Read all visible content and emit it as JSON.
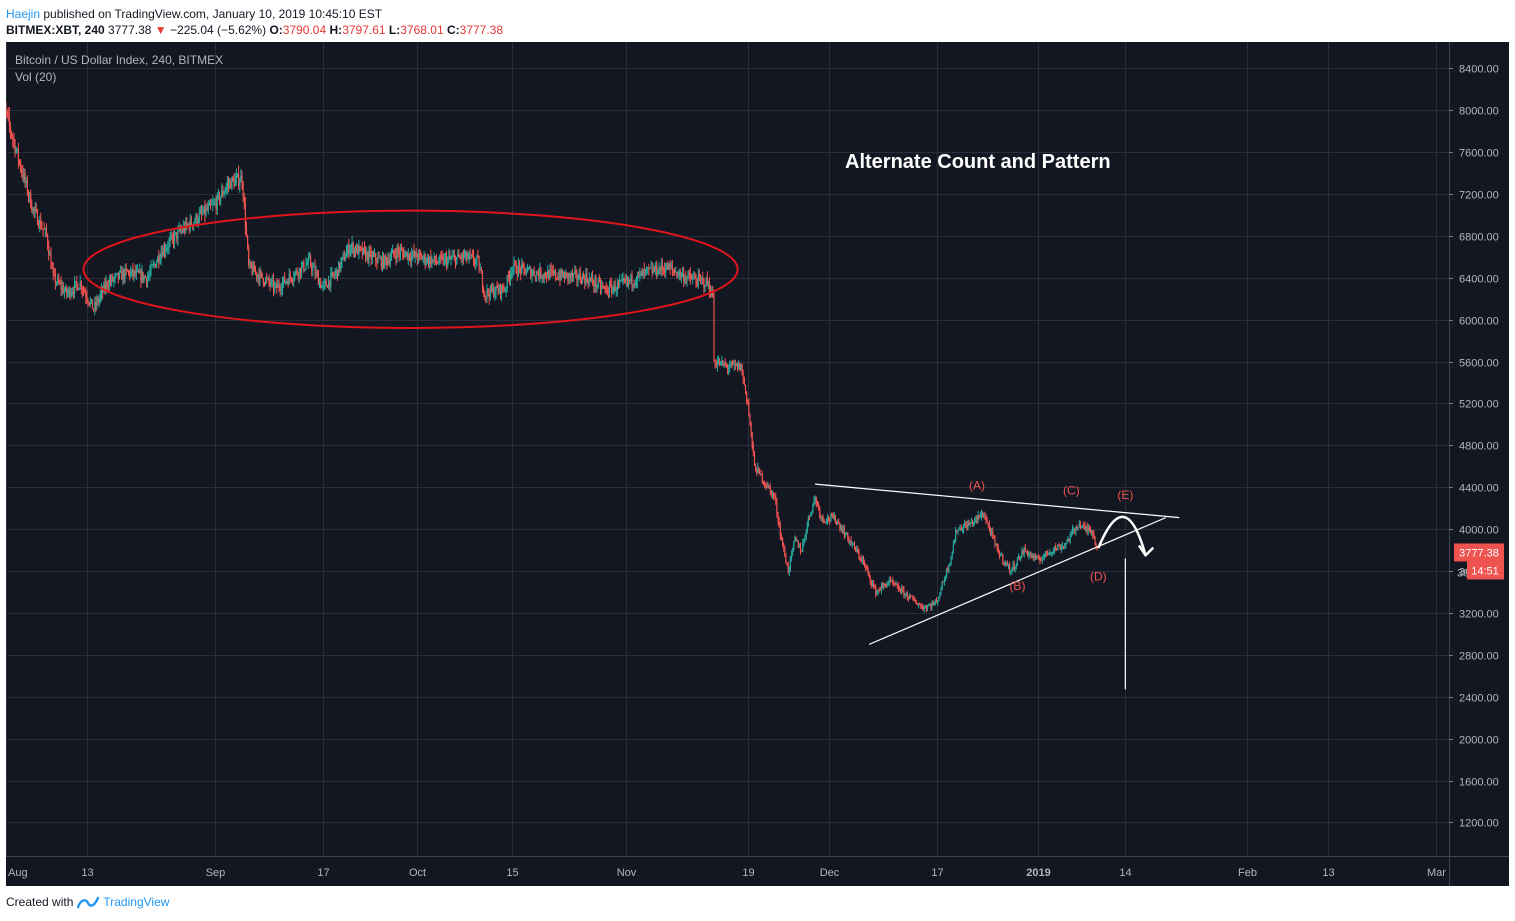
{
  "header": {
    "author": "Haejin",
    "published": "published on TradingView.com, January 10, 2019 10:45:10 EST",
    "symbol": "BITMEX:XBT, 240",
    "last": "3777.38",
    "change": "−225.04 (−5.62%)",
    "open_label": "O:",
    "open": "3790.04",
    "high_label": "H:",
    "high": "3797.61",
    "low_label": "L:",
    "low": "3768.01",
    "close_label": "C:",
    "close": "3777.38"
  },
  "footer": {
    "created_with": "Created with",
    "brand": "TradingView"
  },
  "colors": {
    "background": "#131722",
    "grid": "#2a2e39",
    "up": "#26a69a",
    "down": "#ef5350",
    "ellipse": "#e0151b",
    "wave_label": "#ef5350",
    "annotation": "#ffffff",
    "price_badge": "#ef5350"
  },
  "chart_data": {
    "type": "candlestick",
    "legend": "Bitcoin / US Dollar Index, 240, BITMEX",
    "indicator": "Vol (20)",
    "title": "Alternate Count and Pattern",
    "y_ticks": [
      8400,
      8000,
      7600,
      7200,
      6800,
      6400,
      6000,
      5600,
      5200,
      4800,
      4400,
      4000,
      3600,
      3200,
      2800,
      2400,
      2000,
      1600,
      1200
    ],
    "y_tick_labels": [
      "8400.00",
      "8000.00",
      "7600.00",
      "7200.00",
      "6800.00",
      "6400.00",
      "6000.00",
      "5600.00",
      "5200.00",
      "4800.00",
      "4400.00",
      "4000.00",
      "3600.00",
      "3200.00",
      "2800.00",
      "2400.00",
      "2000.00",
      "1600.00",
      "1200.00"
    ],
    "ylim": [
      880,
      8650
    ],
    "xlim": [
      "2018-08-01",
      "2019-03-03"
    ],
    "x_ticks": [
      {
        "date": "2018-08-01",
        "label": "Aug"
      },
      {
        "date": "2018-08-13",
        "label": "13"
      },
      {
        "date": "2018-09-01",
        "label": "Sep"
      },
      {
        "date": "2018-09-17",
        "label": "17"
      },
      {
        "date": "2018-10-01",
        "label": "Oct"
      },
      {
        "date": "2018-10-15",
        "label": "15"
      },
      {
        "date": "2018-11-01",
        "label": "Nov"
      },
      {
        "date": "2018-11-19",
        "label": "19"
      },
      {
        "date": "2018-12-01",
        "label": "Dec"
      },
      {
        "date": "2018-12-17",
        "label": "17"
      },
      {
        "date": "2019-01-01",
        "label": "2019"
      },
      {
        "date": "2019-01-14",
        "label": "14"
      },
      {
        "date": "2019-02-01",
        "label": "Feb"
      },
      {
        "date": "2019-02-13",
        "label": "13"
      },
      {
        "date": "2019-03-01",
        "label": "Mar"
      }
    ],
    "price_path": [
      [
        "2018-07-31",
        8200
      ],
      [
        "2018-08-03",
        7500
      ],
      [
        "2018-08-05",
        7050
      ],
      [
        "2018-08-07",
        6800
      ],
      [
        "2018-08-08",
        6400
      ],
      [
        "2018-08-10",
        6250
      ],
      [
        "2018-08-12",
        6350
      ],
      [
        "2018-08-14",
        6100
      ],
      [
        "2018-08-16",
        6350
      ],
      [
        "2018-08-19",
        6450
      ],
      [
        "2018-08-22",
        6400
      ],
      [
        "2018-08-24",
        6650
      ],
      [
        "2018-08-27",
        6850
      ],
      [
        "2018-08-30",
        7000
      ],
      [
        "2018-09-01",
        7100
      ],
      [
        "2018-09-03",
        7300
      ],
      [
        "2018-09-05",
        7350
      ],
      [
        "2018-09-06",
        6500
      ],
      [
        "2018-09-08",
        6400
      ],
      [
        "2018-09-10",
        6300
      ],
      [
        "2018-09-13",
        6450
      ],
      [
        "2018-09-15",
        6550
      ],
      [
        "2018-09-17",
        6300
      ],
      [
        "2018-09-19",
        6450
      ],
      [
        "2018-09-21",
        6700
      ],
      [
        "2018-09-24",
        6600
      ],
      [
        "2018-09-26",
        6550
      ],
      [
        "2018-09-28",
        6650
      ],
      [
        "2018-10-01",
        6600
      ],
      [
        "2018-10-04",
        6550
      ],
      [
        "2018-10-08",
        6600
      ],
      [
        "2018-10-10",
        6550
      ],
      [
        "2018-10-11",
        6250
      ],
      [
        "2018-10-14",
        6300
      ],
      [
        "2018-10-15",
        6500
      ],
      [
        "2018-10-18",
        6450
      ],
      [
        "2018-10-22",
        6420
      ],
      [
        "2018-10-26",
        6400
      ],
      [
        "2018-10-29",
        6280
      ],
      [
        "2018-11-01",
        6350
      ],
      [
        "2018-11-04",
        6450
      ],
      [
        "2018-11-07",
        6500
      ],
      [
        "2018-11-10",
        6400
      ],
      [
        "2018-11-13",
        6350
      ],
      [
        "2018-11-14",
        6200
      ],
      [
        "2018-11-14",
        5600
      ],
      [
        "2018-11-16",
        5550
      ],
      [
        "2018-11-18",
        5550
      ],
      [
        "2018-11-19",
        5200
      ],
      [
        "2018-11-20",
        4600
      ],
      [
        "2018-11-22",
        4400
      ],
      [
        "2018-11-23",
        4300
      ],
      [
        "2018-11-24",
        3900
      ],
      [
        "2018-11-25",
        3600
      ],
      [
        "2018-11-26",
        3900
      ],
      [
        "2018-11-27",
        3800
      ],
      [
        "2018-11-28",
        4100
      ],
      [
        "2018-11-29",
        4300
      ],
      [
        "2018-11-30",
        4100
      ],
      [
        "2018-12-02",
        4100
      ],
      [
        "2018-12-04",
        3900
      ],
      [
        "2018-12-06",
        3700
      ],
      [
        "2018-12-08",
        3400
      ],
      [
        "2018-12-10",
        3500
      ],
      [
        "2018-12-12",
        3400
      ],
      [
        "2018-12-15",
        3250
      ],
      [
        "2018-12-17",
        3300
      ],
      [
        "2018-12-19",
        3700
      ],
      [
        "2018-12-20",
        4000
      ],
      [
        "2018-12-22",
        4050
      ],
      [
        "2018-12-24",
        4150
      ],
      [
        "2018-12-26",
        3800
      ],
      [
        "2018-12-28",
        3600
      ],
      [
        "2018-12-30",
        3800
      ],
      [
        "2019-01-01",
        3700
      ],
      [
        "2019-01-03",
        3800
      ],
      [
        "2019-01-05",
        3850
      ],
      [
        "2019-01-07",
        4050
      ],
      [
        "2019-01-08",
        4000
      ],
      [
        "2019-01-09",
        4000
      ],
      [
        "2019-01-10",
        3777
      ]
    ],
    "ellipse": {
      "cx": "2018-09-30",
      "cy": 6480,
      "rx_days": 48.5,
      "ry_price": 560
    },
    "triangle_upper": [
      [
        "2018-11-29",
        4430
      ],
      [
        "2019-01-22",
        4110
      ]
    ],
    "triangle_lower": [
      [
        "2018-12-07",
        2900
      ],
      [
        "2019-01-20",
        4110
      ]
    ],
    "projection_line": [
      [
        "2019-01-14",
        3720
      ],
      [
        "2019-01-14",
        2470
      ]
    ],
    "wave_labels": [
      {
        "label": "(A)",
        "date": "2018-12-23",
        "price": 4380
      },
      {
        "label": "(B)",
        "date": "2018-12-29",
        "price": 3420
      },
      {
        "label": "(C)",
        "date": "2019-01-06",
        "price": 4330
      },
      {
        "label": "(D)",
        "date": "2019-01-10",
        "price": 3510
      },
      {
        "label": "(E)",
        "date": "2019-01-14",
        "price": 4290
      }
    ],
    "arc_path": [
      [
        "2019-01-10",
        3820
      ],
      [
        "2019-01-14",
        4180
      ],
      [
        "2019-01-17",
        3750
      ]
    ],
    "current_price": {
      "value": 3777.38,
      "label": "3777.38",
      "countdown": "14:51",
      "partial_tick": "36"
    }
  }
}
